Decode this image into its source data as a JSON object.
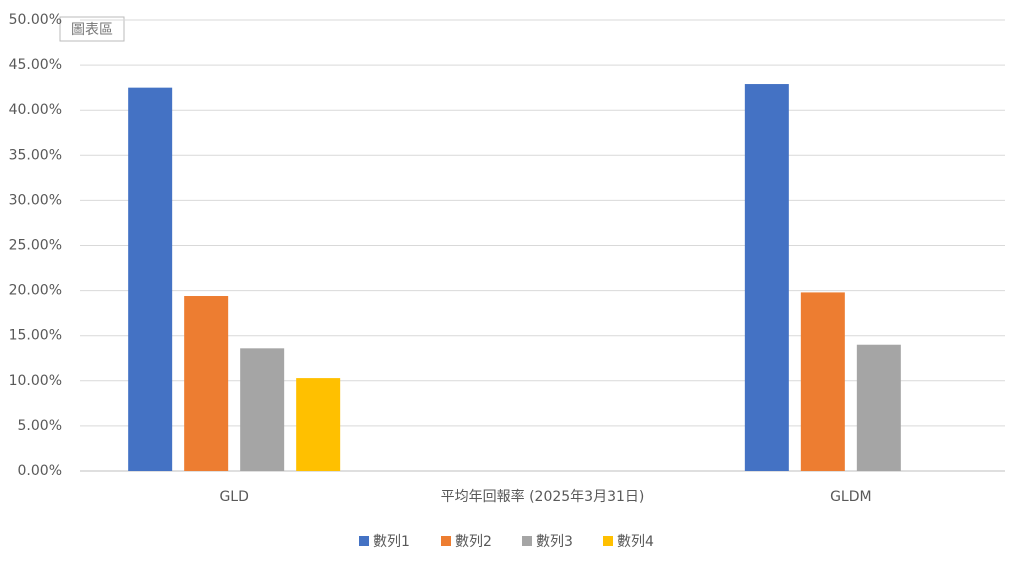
{
  "chart_data": {
    "type": "bar",
    "tooltip": "圖表區",
    "categories": [
      "GLD",
      "平均年回報率 (2025年3月31日)",
      "GLDM"
    ],
    "series": [
      {
        "name": "數列1",
        "color": "#4472c4",
        "values": [
          42.5,
          null,
          42.9
        ]
      },
      {
        "name": "數列2",
        "color": "#ed7d31",
        "values": [
          19.4,
          null,
          19.8
        ]
      },
      {
        "name": "數列3",
        "color": "#a5a5a5",
        "values": [
          13.6,
          null,
          14.0
        ]
      },
      {
        "name": "數列4",
        "color": "#ffc000",
        "values": [
          10.3,
          null,
          null
        ]
      }
    ],
    "ylim": [
      0,
      50
    ],
    "yticks": [
      {
        "value": 0,
        "label": "0.00%"
      },
      {
        "value": 5,
        "label": "5.00%"
      },
      {
        "value": 10,
        "label": "10.00%"
      },
      {
        "value": 15,
        "label": "15.00%"
      },
      {
        "value": 20,
        "label": "20.00%"
      },
      {
        "value": 25,
        "label": "25.00%"
      },
      {
        "value": 30,
        "label": "30.00%"
      },
      {
        "value": 35,
        "label": "35.00%"
      },
      {
        "value": 40,
        "label": "40.00%"
      },
      {
        "value": 45,
        "label": "45.00%"
      },
      {
        "value": 50,
        "label": "50.00%"
      }
    ],
    "grid": true,
    "legend": "bottom"
  }
}
